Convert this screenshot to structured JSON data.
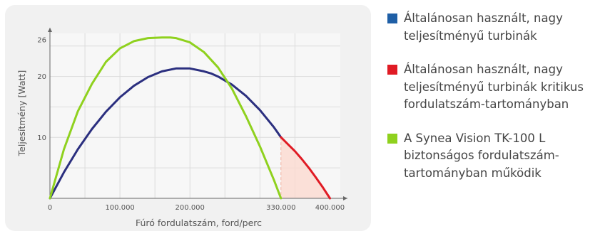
{
  "chart_data": {
    "type": "line",
    "xlabel": "Fúró fordulatszám, ford/perc",
    "ylabel": "Teljesítmény [Watt]",
    "xlim": [
      0,
      425000
    ],
    "ylim": [
      0,
      28
    ],
    "x_ticks": [
      0,
      100000,
      200000,
      330000,
      400000
    ],
    "x_tick_labels": [
      "0",
      "100.000",
      "200.000",
      "330.000",
      "400.000"
    ],
    "y_ticks": [
      10,
      20,
      26
    ],
    "y_tick_labels": [
      "10",
      "20",
      "26"
    ],
    "grid": true,
    "legend_position": "right",
    "critical_region": {
      "x_start": 330000,
      "x_end": 400000
    },
    "series": [
      {
        "key": "turbine",
        "color": "#2b2f7f",
        "x": [
          0,
          20000,
          40000,
          60000,
          80000,
          100000,
          120000,
          140000,
          160000,
          180000,
          200000,
          220000,
          230000,
          240000,
          260000,
          280000,
          300000,
          320000,
          330000
        ],
        "y": [
          0,
          4.27,
          8.06,
          11.37,
          14.21,
          16.58,
          18.47,
          19.89,
          20.84,
          21.31,
          21.31,
          20.84,
          20.5,
          20.0,
          18.66,
          16.82,
          14.48,
          11.65,
          10.02
        ]
      },
      {
        "key": "critical",
        "color": "#e01b24",
        "x": [
          330000,
          340000,
          350000,
          360000,
          370000,
          380000,
          390000,
          400000
        ],
        "y": [
          10.02,
          8.88,
          7.73,
          6.42,
          4.98,
          3.41,
          1.76,
          0
        ]
      },
      {
        "key": "synea",
        "color": "#8fd11e",
        "x": [
          0,
          20000,
          40000,
          60000,
          80000,
          100000,
          120000,
          140000,
          160000,
          172000,
          180000,
          200000,
          220000,
          240000,
          260000,
          280000,
          300000,
          320000,
          330000
        ],
        "y": [
          0,
          8.05,
          14.3,
          18.8,
          22.4,
          24.6,
          25.8,
          26.3,
          26.4,
          26.4,
          26.3,
          25.6,
          24.0,
          21.5,
          18.0,
          13.5,
          8.5,
          3.0,
          0
        ]
      }
    ]
  },
  "legend": [
    {
      "color": "#1f5fa6",
      "text": "Általánosan használt, nagy teljesítményű turbinák"
    },
    {
      "color": "#e01b24",
      "text": "Általánosan használt, nagy teljesítményű turbinák kritikus fordulatszám-tartományban"
    },
    {
      "color": "#8fd11e",
      "text": "A Synea Vision TK-100 L biztonságos fordulatszám-tartományban működik"
    }
  ]
}
